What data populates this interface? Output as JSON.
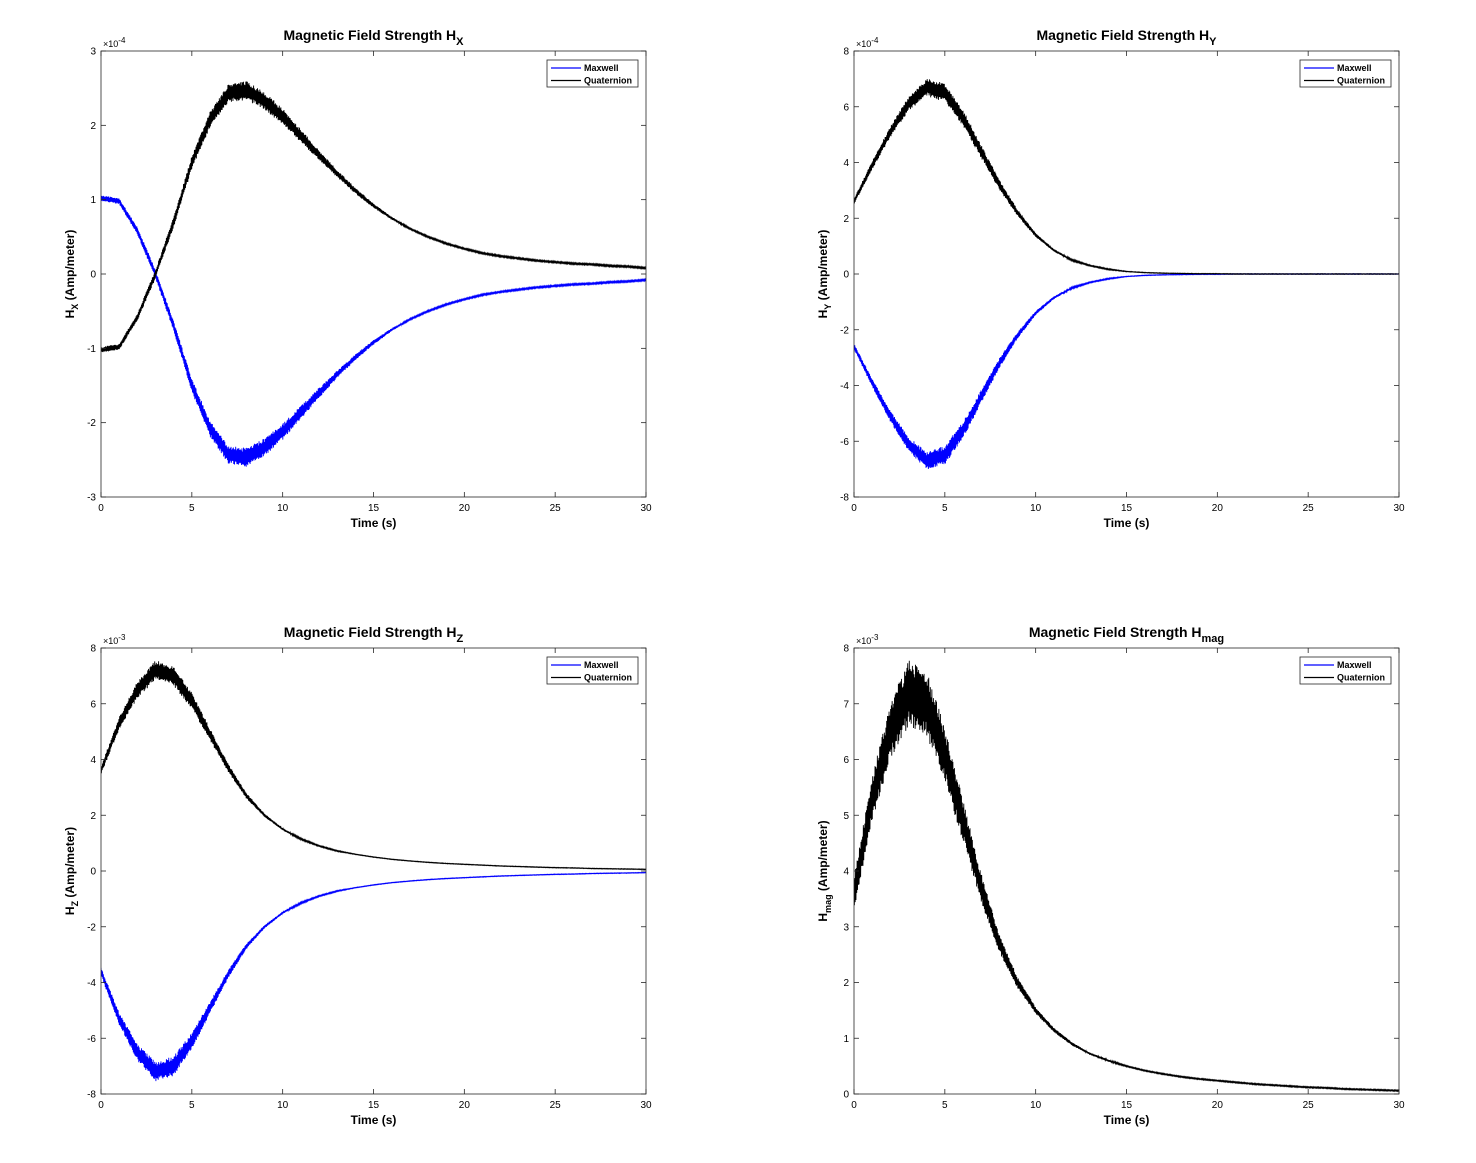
{
  "chart_data": [
    {
      "type": "line",
      "title": {
        "main": "Magnetic Field Strength H",
        "sub": "X"
      },
      "xlabel": "Time (s)",
      "ylabel": {
        "main": "H",
        "sub": "X",
        "rest": " (Amp/meter)"
      },
      "xlim": [
        0,
        30
      ],
      "ylim": [
        -3,
        3
      ],
      "xticks": [
        "0",
        "5",
        "10",
        "15",
        "20",
        "25",
        "30"
      ],
      "yticks": [
        "-3",
        "-2",
        "-1",
        "0",
        "1",
        "2",
        "3"
      ],
      "exponent": {
        "base": "×10",
        "power": "-4"
      },
      "grid": false,
      "legend_position": "top-right",
      "series": [
        {
          "name": "Maxwell",
          "color": "#0000ff",
          "band": [
            0.04,
            0.04,
            0.05,
            0.06,
            0.07,
            0.09,
            0.11,
            0.12,
            0.13,
            0.12,
            0.11,
            0.09,
            0.07,
            0.05,
            0.04,
            0.03,
            0.02,
            0.01,
            0.01,
            0.01,
            0.01,
            0.01,
            0.01,
            0.01,
            0.01,
            0.01,
            0.01,
            0.01,
            0.01,
            0.01,
            0.01
          ],
          "x": [
            0,
            1,
            2,
            3,
            4,
            5,
            6,
            7,
            8,
            9,
            10,
            11,
            12,
            13,
            14,
            15,
            16,
            17,
            18,
            19,
            20,
            21,
            22,
            23,
            24,
            25,
            26,
            27,
            28,
            29,
            30
          ],
          "y": [
            1.02,
            0.98,
            0.58,
            0.0,
            -0.7,
            -1.5,
            -2.08,
            -2.43,
            -2.47,
            -2.33,
            -2.12,
            -1.86,
            -1.6,
            -1.35,
            -1.12,
            -0.92,
            -0.75,
            -0.61,
            -0.5,
            -0.41,
            -0.34,
            -0.28,
            -0.24,
            -0.21,
            -0.18,
            -0.16,
            -0.14,
            -0.13,
            -0.11,
            -0.1,
            -0.08
          ]
        },
        {
          "name": "Quaternion",
          "color": "#000000",
          "band": [
            0.04,
            0.04,
            0.05,
            0.06,
            0.07,
            0.09,
            0.11,
            0.12,
            0.13,
            0.12,
            0.11,
            0.09,
            0.07,
            0.05,
            0.04,
            0.03,
            0.02,
            0.01,
            0.01,
            0.01,
            0.01,
            0.01,
            0.01,
            0.01,
            0.01,
            0.01,
            0.01,
            0.01,
            0.01,
            0.01,
            0.01
          ],
          "x": [
            0,
            1,
            2,
            3,
            4,
            5,
            6,
            7,
            8,
            9,
            10,
            11,
            12,
            13,
            14,
            15,
            16,
            17,
            18,
            19,
            20,
            21,
            22,
            23,
            24,
            25,
            26,
            27,
            28,
            29,
            30
          ],
          "y": [
            -1.02,
            -0.98,
            -0.58,
            0.0,
            0.7,
            1.5,
            2.08,
            2.43,
            2.47,
            2.33,
            2.12,
            1.86,
            1.6,
            1.35,
            1.12,
            0.92,
            0.75,
            0.61,
            0.5,
            0.41,
            0.34,
            0.28,
            0.24,
            0.21,
            0.18,
            0.16,
            0.14,
            0.13,
            0.11,
            0.1,
            0.08
          ]
        }
      ]
    },
    {
      "type": "line",
      "title": {
        "main": "Magnetic Field Strength H",
        "sub": "Y"
      },
      "xlabel": "Time (s)",
      "ylabel": {
        "main": "H",
        "sub": "Y",
        "rest": " (Amp/meter)"
      },
      "xlim": [
        0,
        30
      ],
      "ylim": [
        -8,
        8
      ],
      "xticks": [
        "0",
        "5",
        "10",
        "15",
        "20",
        "25",
        "30"
      ],
      "yticks": [
        "-8",
        "-6",
        "-4",
        "-2",
        "0",
        "2",
        "4",
        "6",
        "8"
      ],
      "exponent": {
        "base": "×10",
        "power": "-4"
      },
      "grid": false,
      "legend_position": "top-right",
      "series": [
        {
          "name": "Maxwell",
          "color": "#0000ff",
          "band": [
            0.1,
            0.15,
            0.2,
            0.26,
            0.32,
            0.34,
            0.3,
            0.24,
            0.18,
            0.12,
            0.08,
            0.05,
            0.03,
            0.02,
            0.02,
            0.01,
            0.01,
            0.01,
            0.01,
            0.01,
            0.01,
            0.01,
            0.01,
            0.01,
            0.01,
            0.01,
            0.01,
            0.01,
            0.01,
            0.01,
            0.01
          ],
          "x": [
            0,
            1,
            2,
            3,
            4,
            5,
            6,
            7,
            8,
            9,
            10,
            11,
            12,
            13,
            14,
            15,
            16,
            17,
            18,
            19,
            20,
            21,
            22,
            23,
            24,
            25,
            26,
            27,
            28,
            29,
            30
          ],
          "y": [
            -2.6,
            -3.9,
            -5.1,
            -6.1,
            -6.7,
            -6.5,
            -5.6,
            -4.4,
            -3.2,
            -2.2,
            -1.4,
            -0.85,
            -0.5,
            -0.3,
            -0.17,
            -0.09,
            -0.05,
            -0.03,
            -0.02,
            -0.01,
            -0.01,
            0,
            0,
            0,
            0,
            0,
            0,
            0,
            0,
            0,
            0
          ]
        },
        {
          "name": "Quaternion",
          "color": "#000000",
          "band": [
            0.1,
            0.15,
            0.2,
            0.26,
            0.32,
            0.34,
            0.3,
            0.24,
            0.18,
            0.12,
            0.08,
            0.05,
            0.03,
            0.02,
            0.02,
            0.01,
            0.01,
            0.01,
            0.01,
            0.01,
            0.01,
            0.01,
            0.01,
            0.01,
            0.01,
            0.01,
            0.01,
            0.01,
            0.01,
            0.01,
            0.01
          ],
          "x": [
            0,
            1,
            2,
            3,
            4,
            5,
            6,
            7,
            8,
            9,
            10,
            11,
            12,
            13,
            14,
            15,
            16,
            17,
            18,
            19,
            20,
            21,
            22,
            23,
            24,
            25,
            26,
            27,
            28,
            29,
            30
          ],
          "y": [
            2.6,
            3.9,
            5.1,
            6.1,
            6.7,
            6.5,
            5.6,
            4.4,
            3.2,
            2.2,
            1.4,
            0.85,
            0.5,
            0.3,
            0.17,
            0.09,
            0.05,
            0.03,
            0.02,
            0.01,
            0.01,
            0,
            0,
            0,
            0,
            0,
            0,
            0,
            0,
            0,
            0
          ]
        }
      ]
    },
    {
      "type": "line",
      "title": {
        "main": "Magnetic Field Strength H",
        "sub": "Z"
      },
      "xlabel": "Time (s)",
      "ylabel": {
        "main": "H",
        "sub": "Z",
        "rest": " (Amp/meter)"
      },
      "xlim": [
        0,
        30
      ],
      "ylim": [
        -8,
        8
      ],
      "xticks": [
        "0",
        "5",
        "10",
        "15",
        "20",
        "25",
        "30"
      ],
      "yticks": [
        "-8",
        "-6",
        "-4",
        "-2",
        "0",
        "2",
        "4",
        "6",
        "8"
      ],
      "exponent": {
        "base": "×10",
        "power": "-3"
      },
      "grid": false,
      "legend_position": "top-right",
      "series": [
        {
          "name": "Maxwell",
          "color": "#0000ff",
          "band": [
            0.15,
            0.22,
            0.3,
            0.36,
            0.36,
            0.3,
            0.22,
            0.15,
            0.1,
            0.06,
            0.04,
            0.03,
            0.02,
            0.02,
            0.01,
            0.01,
            0.01,
            0.01,
            0.01,
            0.01,
            0.01,
            0.01,
            0.01,
            0.01,
            0.01,
            0.01,
            0.01,
            0.01,
            0.01,
            0.01,
            0.01
          ],
          "x": [
            0,
            1,
            2,
            3,
            4,
            5,
            6,
            7,
            8,
            9,
            10,
            11,
            12,
            13,
            14,
            15,
            16,
            17,
            18,
            19,
            20,
            21,
            22,
            23,
            24,
            25,
            26,
            27,
            28,
            29,
            30
          ],
          "y": [
            -3.6,
            -5.3,
            -6.5,
            -7.2,
            -7.0,
            -6.1,
            -4.9,
            -3.7,
            -2.7,
            -2.0,
            -1.5,
            -1.15,
            -0.9,
            -0.72,
            -0.6,
            -0.5,
            -0.42,
            -0.36,
            -0.31,
            -0.27,
            -0.24,
            -0.21,
            -0.18,
            -0.16,
            -0.14,
            -0.12,
            -0.11,
            -0.09,
            -0.08,
            -0.07,
            -0.06
          ]
        },
        {
          "name": "Quaternion",
          "color": "#000000",
          "band": [
            0.15,
            0.22,
            0.3,
            0.36,
            0.36,
            0.3,
            0.22,
            0.15,
            0.1,
            0.06,
            0.04,
            0.03,
            0.02,
            0.02,
            0.01,
            0.01,
            0.01,
            0.01,
            0.01,
            0.01,
            0.01,
            0.01,
            0.01,
            0.01,
            0.01,
            0.01,
            0.01,
            0.01,
            0.01,
            0.01,
            0.01
          ],
          "x": [
            0,
            1,
            2,
            3,
            4,
            5,
            6,
            7,
            8,
            9,
            10,
            11,
            12,
            13,
            14,
            15,
            16,
            17,
            18,
            19,
            20,
            21,
            22,
            23,
            24,
            25,
            26,
            27,
            28,
            29,
            30
          ],
          "y": [
            3.6,
            5.3,
            6.5,
            7.2,
            7.0,
            6.1,
            4.9,
            3.7,
            2.7,
            2.0,
            1.5,
            1.15,
            0.9,
            0.72,
            0.6,
            0.5,
            0.42,
            0.36,
            0.31,
            0.27,
            0.24,
            0.21,
            0.18,
            0.16,
            0.14,
            0.12,
            0.11,
            0.09,
            0.08,
            0.07,
            0.06
          ]
        }
      ]
    },
    {
      "type": "line",
      "title": {
        "main": "Magnetic Field Strength H",
        "sub": "mag"
      },
      "xlabel": "Time (s)",
      "ylabel": {
        "main": "H",
        "sub": "mag",
        "rest": " (Amp/meter)"
      },
      "xlim": [
        0,
        30
      ],
      "ylim": [
        0,
        8
      ],
      "xticks": [
        "0",
        "5",
        "10",
        "15",
        "20",
        "25",
        "30"
      ],
      "yticks": [
        "0",
        "1",
        "2",
        "3",
        "4",
        "5",
        "6",
        "7",
        "8"
      ],
      "exponent": {
        "base": "×10",
        "power": "-3"
      },
      "grid": false,
      "legend_position": "top-right",
      "series": [
        {
          "name": "Maxwell",
          "color": "#0000ff",
          "band": [
            0,
            0,
            0,
            0,
            0,
            0,
            0,
            0,
            0,
            0,
            0,
            0,
            0,
            0,
            0,
            0,
            0,
            0,
            0,
            0,
            0,
            0,
            0,
            0,
            0,
            0,
            0,
            0,
            0,
            0,
            0
          ],
          "x": [
            0,
            1,
            2,
            3,
            4,
            5,
            6,
            7,
            8,
            9,
            10,
            11,
            12,
            13,
            14,
            15,
            16,
            17,
            18,
            19,
            20,
            21,
            22,
            23,
            24,
            25,
            26,
            27,
            28,
            29,
            30
          ],
          "y": [
            3.6,
            5.3,
            6.5,
            7.2,
            7.0,
            6.1,
            4.9,
            3.7,
            2.7,
            2.0,
            1.5,
            1.15,
            0.9,
            0.72,
            0.6,
            0.5,
            0.42,
            0.36,
            0.31,
            0.27,
            0.24,
            0.21,
            0.18,
            0.16,
            0.14,
            0.12,
            0.11,
            0.09,
            0.08,
            0.07,
            0.06
          ]
        },
        {
          "name": "Quaternion",
          "color": "#000000",
          "band": [
            0.3,
            0.4,
            0.5,
            0.6,
            0.6,
            0.5,
            0.38,
            0.26,
            0.16,
            0.1,
            0.06,
            0.04,
            0.03,
            0.02,
            0.02,
            0.01,
            0.01,
            0.01,
            0.01,
            0.01,
            0.01,
            0.01,
            0.01,
            0.01,
            0.01,
            0.01,
            0.01,
            0.01,
            0.01,
            0.01,
            0.01
          ],
          "x": [
            0,
            1,
            2,
            3,
            4,
            5,
            6,
            7,
            8,
            9,
            10,
            11,
            12,
            13,
            14,
            15,
            16,
            17,
            18,
            19,
            20,
            21,
            22,
            23,
            24,
            25,
            26,
            27,
            28,
            29,
            30
          ],
          "y": [
            3.6,
            5.3,
            6.5,
            7.2,
            7.0,
            6.1,
            4.9,
            3.7,
            2.7,
            2.0,
            1.5,
            1.15,
            0.9,
            0.72,
            0.6,
            0.5,
            0.42,
            0.36,
            0.31,
            0.27,
            0.24,
            0.21,
            0.18,
            0.16,
            0.14,
            0.12,
            0.11,
            0.09,
            0.08,
            0.07,
            0.06
          ]
        }
      ]
    }
  ]
}
